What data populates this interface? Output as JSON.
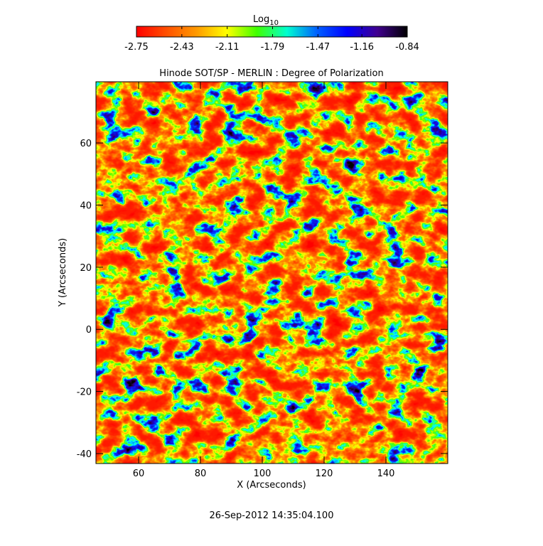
{
  "chart_data": [
    {
      "type": "colorbar",
      "label": "Log",
      "label_subscript": "10",
      "colors": [
        "#ff0000",
        "#ff5000",
        "#ff9a00",
        "#ffff00",
        "#40ff00",
        "#00ffd0",
        "#0060ff",
        "#0000ff",
        "#400090",
        "#000000"
      ],
      "xlim": [
        -2.75,
        -0.84
      ],
      "xticks": [
        -2.75,
        -2.43,
        -2.11,
        -1.79,
        -1.47,
        -1.16,
        -0.84
      ]
    },
    {
      "type": "heatmap",
      "title": "Hinode SOT/SP - MERLIN : Degree of Polarization",
      "x_label": "X (Arcseconds)",
      "y_label": "Y (Arcseconds)",
      "xlim": [
        46.2,
        160
      ],
      "ylim": [
        -43.2,
        79.7
      ],
      "xticks": [
        60,
        80,
        100,
        120,
        140
      ],
      "yticks": [
        -40,
        -20,
        0,
        20,
        40,
        60
      ],
      "annotation": "26-Sep-2012 14:35:04.100"
    }
  ]
}
